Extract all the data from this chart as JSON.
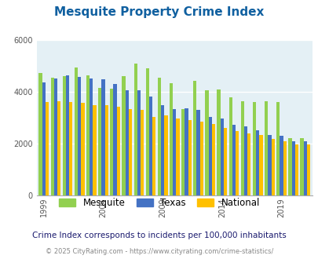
{
  "title": "Mesquite Property Crime Index",
  "title_color": "#1060a0",
  "subtitle": "Crime Index corresponds to incidents per 100,000 inhabitants",
  "footer": "© 2025 CityRating.com - https://www.cityrating.com/crime-statistics/",
  "years": [
    1999,
    2000,
    2001,
    2002,
    2003,
    2004,
    2005,
    2006,
    2007,
    2008,
    2009,
    2010,
    2011,
    2012,
    2013,
    2014,
    2015,
    2016,
    2017,
    2018,
    2019,
    2020,
    2021
  ],
  "mesquite": [
    4720,
    4550,
    4600,
    4950,
    4650,
    4150,
    4120,
    4600,
    5090,
    4900,
    4560,
    4350,
    3330,
    4420,
    4060,
    4090,
    3800,
    3630,
    3620,
    3630,
    3620,
    2220,
    2220
  ],
  "texas": [
    4360,
    4520,
    4630,
    4580,
    4530,
    4490,
    4300,
    4060,
    4060,
    3820,
    3490,
    3350,
    3360,
    3320,
    3020,
    2980,
    2740,
    2660,
    2520,
    2340,
    2310,
    2100,
    2100
  ],
  "national": [
    3620,
    3630,
    3600,
    3590,
    3480,
    3480,
    3430,
    3330,
    3300,
    3020,
    3110,
    2960,
    2910,
    2860,
    2760,
    2620,
    2500,
    2390,
    2350,
    2200,
    2100,
    1960,
    1960
  ],
  "mesquite_color": "#92d050",
  "texas_color": "#4472c4",
  "national_color": "#ffc000",
  "bg_color": "#e4f0f5",
  "ylim": [
    0,
    6000
  ],
  "yticks": [
    0,
    2000,
    4000,
    6000
  ],
  "bar_width": 0.28,
  "legend_labels": [
    "Mesquite",
    "Texas",
    "National"
  ],
  "xlabel_years": [
    1999,
    2004,
    2009,
    2014,
    2019
  ],
  "subtitle_color": "#1a1a6e",
  "footer_color": "#888888"
}
